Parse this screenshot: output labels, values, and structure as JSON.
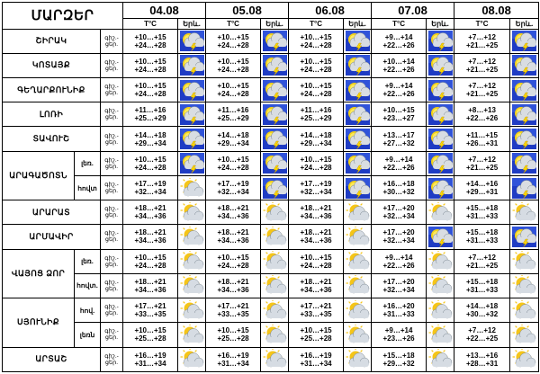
{
  "header": {
    "title": "ՄԱՐԶԵՐ",
    "temp_label": "T°C",
    "sky_label": "Երև."
  },
  "dates": [
    "04.08",
    "05.08",
    "06.08",
    "07.08",
    "08.08"
  ],
  "rows": [
    {
      "region": "ՇԻՐԱԿ",
      "sub": "",
      "period": "գիշ.- ցեր.",
      "cells": [
        {
          "night": "+10…+15",
          "day": "+24…+28",
          "icon": "sun-cloud-lightning-icon"
        },
        {
          "night": "+10…+15",
          "day": "+24…+28",
          "icon": "sun-cloud-lightning-icon"
        },
        {
          "night": "+10…+15",
          "day": "+24…+28",
          "icon": "sun-cloud-lightning-icon"
        },
        {
          "night": "+9…+14",
          "day": "+22…+26",
          "icon": "sun-cloud-lightning-icon"
        },
        {
          "night": "+7…+12",
          "day": "+21…+25",
          "icon": "sun-cloud-lightning-icon"
        }
      ]
    },
    {
      "region": "ԿՈՏԱՅՔ",
      "sub": "",
      "period": "գիշ.- ցեր.",
      "cells": [
        {
          "night": "+10…+15",
          "day": "+24…+28",
          "icon": "sun-cloud-lightning-icon"
        },
        {
          "night": "+10…+15",
          "day": "+24…+28",
          "icon": "sun-cloud-lightning-icon"
        },
        {
          "night": "+10…+15",
          "day": "+24…+28",
          "icon": "sun-cloud-lightning-icon"
        },
        {
          "night": "+10…+14",
          "day": "+22…+26",
          "icon": "sun-cloud-lightning-icon"
        },
        {
          "night": "+7…+12",
          "day": "+21…+25",
          "icon": "sun-cloud-lightning-icon"
        }
      ]
    },
    {
      "region": "ԳԵՂԱՐՔՈՒՆԻՔ",
      "sub": "",
      "period": "գիշ.- ցեր.",
      "cells": [
        {
          "night": "+10…+15",
          "day": "+24…+28",
          "icon": "sun-cloud-lightning-icon"
        },
        {
          "night": "+10…+15",
          "day": "+24…+28",
          "icon": "sun-cloud-lightning-icon"
        },
        {
          "night": "+10…+15",
          "day": "+24…+28",
          "icon": "sun-cloud-lightning-icon"
        },
        {
          "night": "+9…+14",
          "day": "+22…+26",
          "icon": "sun-cloud-lightning-icon"
        },
        {
          "night": "+7…+12",
          "day": "+21…+25",
          "icon": "sun-cloud-lightning-icon"
        }
      ]
    },
    {
      "region": "ԼՈՌԻ",
      "sub": "",
      "period": "գիշ.- ցեր.",
      "cells": [
        {
          "night": "+11…+16",
          "day": "+25…+29",
          "icon": "sun-cloud-lightning-icon"
        },
        {
          "night": "+11…+16",
          "day": "+25…+29",
          "icon": "sun-cloud-lightning-icon"
        },
        {
          "night": "+11…+16",
          "day": "+25…+29",
          "icon": "sun-cloud-lightning-icon"
        },
        {
          "night": "+10…+15",
          "day": "+23…+27",
          "icon": "sun-cloud-lightning-icon"
        },
        {
          "night": "+8…+13",
          "day": "+22…+26",
          "icon": "sun-cloud-lightning-icon"
        }
      ]
    },
    {
      "region": "ՏԱՎՈՒՇ",
      "sub": "",
      "period": "գիշ.- ցեր.",
      "cells": [
        {
          "night": "+14…+18",
          "day": "+29…+34",
          "icon": "sun-cloud-lightning-icon"
        },
        {
          "night": "+14…+18",
          "day": "+29…+34",
          "icon": "sun-cloud-lightning-icon"
        },
        {
          "night": "+14…+18",
          "day": "+29…+34",
          "icon": "sun-cloud-lightning-icon"
        },
        {
          "night": "+13…+17",
          "day": "+27…+32",
          "icon": "sun-cloud-lightning-icon"
        },
        {
          "night": "+11…+15",
          "day": "+26…+31",
          "icon": "sun-cloud-lightning-icon"
        }
      ]
    },
    {
      "region": "ԱՐԱԳԱԾՈՏՆ",
      "sub": "լեռ.",
      "period": "գիշ.- ցեր.",
      "cells": [
        {
          "night": "+10…+15",
          "day": "+24…+28",
          "icon": "sun-cloud-lightning-icon"
        },
        {
          "night": "+10…+15",
          "day": "+24…+28",
          "icon": "sun-cloud-lightning-icon"
        },
        {
          "night": "+10…+15",
          "day": "+24…+28",
          "icon": "sun-cloud-lightning-icon"
        },
        {
          "night": "+9…+14",
          "day": "+22…+26",
          "icon": "sun-cloud-lightning-icon"
        },
        {
          "night": "+7…+12",
          "day": "+21…+25",
          "icon": "sun-cloud-lightning-icon"
        }
      ]
    },
    {
      "region": "",
      "sub": "հովտ",
      "period": "գիշ.- ցեր.",
      "cells": [
        {
          "night": "+17…+19",
          "day": "+32…+34",
          "icon": "sun-cloud-icon"
        },
        {
          "night": "+17…+19",
          "day": "+32…+34",
          "icon": "sun-cloud-lightning-icon"
        },
        {
          "night": "+17…+19",
          "day": "+32…+34",
          "icon": "sun-cloud-lightning-icon"
        },
        {
          "night": "+16…+18",
          "day": "+30…+32",
          "icon": "sun-cloud-lightning-icon"
        },
        {
          "night": "+14…+16",
          "day": "+29…+31",
          "icon": "cloud-lightning-icon"
        }
      ]
    },
    {
      "region": "ԱՐԱՐԱՏ",
      "sub": "",
      "period": "գիշ.- ցեր.",
      "cells": [
        {
          "night": "+18…+21",
          "day": "+34…+36",
          "icon": "sun-cloud-icon"
        },
        {
          "night": "+18…+21",
          "day": "+34…+36",
          "icon": "sun-cloud-icon"
        },
        {
          "night": "+18…+21",
          "day": "+34…+36",
          "icon": "sun-cloud-icon"
        },
        {
          "night": "+17…+20",
          "day": "+32…+34",
          "icon": "sun-cloud-icon"
        },
        {
          "night": "+15…+18",
          "day": "+31…+33",
          "icon": "sun-cloud-icon"
        }
      ]
    },
    {
      "region": "ԱՐՄԱՎԻՐ",
      "sub": "",
      "period": "գիշ.- ցեր.",
      "cells": [
        {
          "night": "+18…+21",
          "day": "+34…+36",
          "icon": "sun-cloud-icon"
        },
        {
          "night": "+18…+21",
          "day": "+34…+36",
          "icon": "sun-cloud-icon"
        },
        {
          "night": "+18…+21",
          "day": "+34…+36",
          "icon": "sun-cloud-icon"
        },
        {
          "night": "+17…+20",
          "day": "+32…+34",
          "icon": "sun-cloud-lightning-icon"
        },
        {
          "night": "+15…+18",
          "day": "+31…+33",
          "icon": "sun-cloud-lightning-icon"
        }
      ]
    },
    {
      "region": "ՎԱՅՈՑ ՁՈՐ",
      "sub": "լեռ.",
      "period": "գիշ.- ցեր.",
      "cells": [
        {
          "night": "+10…+15",
          "day": "+24…+28",
          "icon": "sun-cloud-icon"
        },
        {
          "night": "+10…+15",
          "day": "+24…+28",
          "icon": "sun-cloud-icon"
        },
        {
          "night": "+10…+15",
          "day": "+24…+28",
          "icon": "sun-cloud-icon"
        },
        {
          "night": "+9…+14",
          "day": "+22…+26",
          "icon": "sun-cloud-icon"
        },
        {
          "night": "+7…+12",
          "day": "+21…+25",
          "icon": "sun-cloud-icon"
        }
      ]
    },
    {
      "region": "",
      "sub": "հովտ.",
      "period": "գիշ.- ցեր.",
      "cells": [
        {
          "night": "+18…+21",
          "day": "+34…+36",
          "icon": "sun-cloud-icon"
        },
        {
          "night": "+18…+21",
          "day": "+34…+36",
          "icon": "sun-cloud-icon"
        },
        {
          "night": "+18…+21",
          "day": "+34…+36",
          "icon": "sun-cloud-icon"
        },
        {
          "night": "+17…+20",
          "day": "+32…+34",
          "icon": "sun-cloud-icon"
        },
        {
          "night": "+15…+18",
          "day": "+31…+33",
          "icon": "sun-cloud-icon"
        }
      ]
    },
    {
      "region": "ՍՅՈՒՆԻՔ",
      "sub": "հով.",
      "period": "գիշ.- ցեր.",
      "cells": [
        {
          "night": "+17…+21",
          "day": "+33…+35",
          "icon": "sun-cloud-icon"
        },
        {
          "night": "+17…+21",
          "day": "+33…+35",
          "icon": "sun-cloud-icon"
        },
        {
          "night": "+17…+21",
          "day": "+33…+35",
          "icon": "sun-cloud-icon"
        },
        {
          "night": "+16…+20",
          "day": "+31…+33",
          "icon": "sun-cloud-icon"
        },
        {
          "night": "+14…+18",
          "day": "+30…+32",
          "icon": "sun-cloud-icon"
        }
      ]
    },
    {
      "region": "",
      "sub": "լեռն",
      "period": "գիշ.- ցեր.",
      "cells": [
        {
          "night": "+10…+15",
          "day": "+25…+28",
          "icon": "sun-cloud-icon"
        },
        {
          "night": "+10…+15",
          "day": "+25…+28",
          "icon": "sun-cloud-icon"
        },
        {
          "night": "+10…+15",
          "day": "+25…+28",
          "icon": "sun-cloud-icon"
        },
        {
          "night": "+9…+14",
          "day": "+23…+26",
          "icon": "sun-cloud-icon"
        },
        {
          "night": "+7…+12",
          "day": "+22…+25",
          "icon": "sun-cloud-icon"
        }
      ]
    },
    {
      "region": "ԱՐՏԱՇ",
      "sub": "",
      "period": "գիշ.- ցեր.",
      "cells": [
        {
          "night": "+16…+19",
          "day": "+31…+34",
          "icon": "sun-cloud-icon"
        },
        {
          "night": "+16…+19",
          "day": "+31…+34",
          "icon": "sun-cloud-icon"
        },
        {
          "night": "+16…+19",
          "day": "+31…+34",
          "icon": "sun-cloud-icon"
        },
        {
          "night": "+15…+18",
          "day": "+29…+32",
          "icon": "sun-cloud-icon"
        },
        {
          "night": "+13…+16",
          "day": "+28…+31",
          "icon": "sun-cloud-icon"
        }
      ]
    }
  ]
}
